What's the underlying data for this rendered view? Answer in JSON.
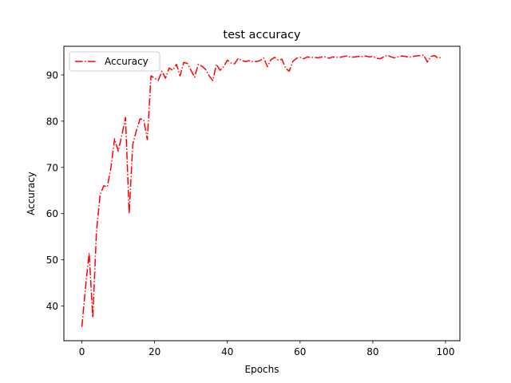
{
  "chart_data": {
    "type": "line",
    "title": "test accuracy",
    "xlabel": "Epochs",
    "ylabel": "Accuracy",
    "xlim": [
      -4.95,
      103.95
    ],
    "ylim": [
      32.5,
      96.2
    ],
    "xticks": [
      0,
      20,
      40,
      60,
      80,
      100
    ],
    "yticks": [
      40,
      50,
      60,
      70,
      80,
      90
    ],
    "grid": false,
    "legend_position": "upper left",
    "series": [
      {
        "name": "Accuracy",
        "color": "#ff0000",
        "linestyle": "dashdot",
        "x": [
          0,
          1,
          2,
          3,
          4,
          5,
          6,
          7,
          8,
          9,
          10,
          11,
          12,
          13,
          14,
          15,
          16,
          17,
          18,
          19,
          20,
          21,
          22,
          23,
          24,
          25,
          26,
          27,
          28,
          29,
          30,
          31,
          32,
          33,
          34,
          35,
          36,
          37,
          38,
          39,
          40,
          41,
          42,
          43,
          44,
          45,
          46,
          47,
          48,
          49,
          50,
          51,
          52,
          53,
          54,
          55,
          56,
          57,
          58,
          59,
          60,
          61,
          62,
          63,
          64,
          65,
          66,
          67,
          68,
          69,
          70,
          71,
          72,
          73,
          74,
          75,
          76,
          77,
          78,
          79,
          80,
          81,
          82,
          83,
          84,
          85,
          86,
          87,
          88,
          89,
          90,
          91,
          92,
          93,
          94,
          95,
          96,
          97,
          98,
          99
        ],
        "y": [
          35.5,
          44.0,
          51.5,
          37.5,
          56.0,
          64.0,
          66.0,
          65.8,
          70.0,
          76.2,
          73.5,
          77.0,
          80.8,
          60.0,
          75.0,
          78.0,
          80.5,
          80.3,
          76.0,
          89.8,
          89.3,
          88.8,
          90.8,
          89.3,
          91.5,
          91.0,
          92.3,
          89.8,
          92.7,
          92.5,
          91.0,
          89.5,
          92.3,
          91.9,
          91.2,
          89.8,
          88.8,
          92.3,
          91.0,
          91.8,
          93.2,
          92.6,
          92.4,
          93.6,
          93.1,
          92.9,
          93.1,
          92.9,
          92.9,
          93.1,
          93.7,
          91.8,
          93.3,
          93.8,
          93.2,
          93.4,
          91.5,
          90.8,
          92.9,
          93.6,
          93.8,
          93.5,
          93.9,
          93.8,
          93.8,
          93.7,
          93.9,
          93.9,
          93.6,
          93.9,
          93.8,
          93.8,
          94.0,
          94.1,
          93.8,
          93.9,
          94.0,
          94.0,
          94.1,
          93.9,
          94.0,
          93.6,
          93.5,
          93.9,
          94.3,
          93.9,
          93.7,
          93.9,
          94.1,
          94.0,
          93.8,
          94.0,
          94.1,
          94.2,
          94.3,
          92.8,
          94.0,
          94.2,
          93.6,
          93.9
        ]
      }
    ]
  }
}
